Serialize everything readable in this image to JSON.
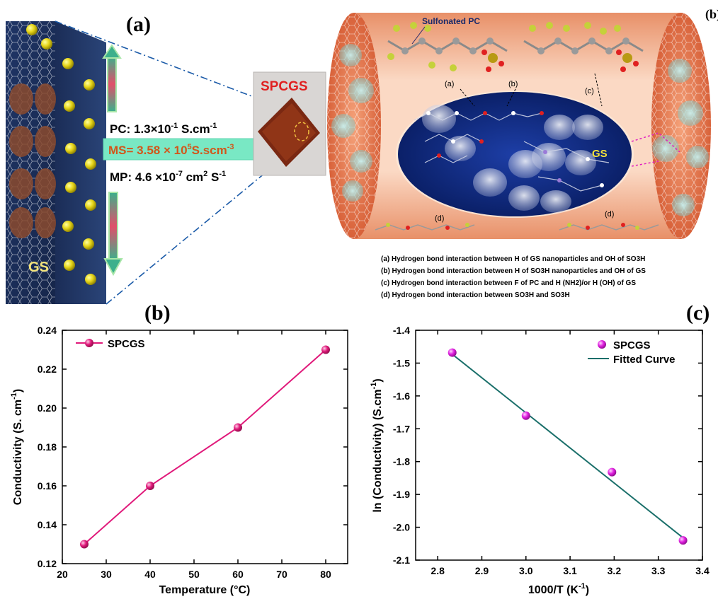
{
  "panel_a": {
    "letter": "(a)",
    "block_label": "GS",
    "film_label": "SPCGS",
    "pc_text": "PC: 1.3×10",
    "pc_exp": "-1",
    "pc_unit": " S.cm",
    "pc_unit_exp": "-1",
    "ms_text": "MS= 3.58 × 10",
    "ms_exp": "5",
    "ms_unit": "S.scm",
    "ms_unit_exp": "-3",
    "mp_text": "MP: 4.6 ×10",
    "mp_exp": "-7",
    "mp_unit": " cm",
    "mp_unit_exp": "2",
    "mp_tail": " S",
    "mp_tail_exp": "-1"
  },
  "panel_b_top": {
    "letter": "(b)",
    "sulfonated_label": "Sulfonated PC",
    "gs_label": "GS",
    "tag_a": "(a)",
    "tag_b": "(b)",
    "tag_c": "(c)",
    "tag_d": "(d)",
    "notes": [
      "(a) Hydrogen bond interaction between H of GS nanoparticles and OH of SO3H",
      "(b) Hydrogen bond interaction between H of SO3H nanoparticles and OH of GS",
      "(c) Hydrogen bond interaction between F of PC and H (NH2)/or H (OH) of GS",
      "(d) Hydrogen bond interaction between SO3H and SO3H"
    ]
  },
  "colors": {
    "pink_line": "#e0197a",
    "marker_magenta": "#e020e0",
    "teal_fit": "#1a6f6a",
    "ms_box": "#79e8c4",
    "ms_text": "#d2561a"
  },
  "chart_data": [
    {
      "type": "line",
      "panel": "(b)",
      "xlabel": "Temperature (°C)",
      "ylabel": "Conductivity (S. cm",
      "ylabel_sup": "-1",
      "ylabel_tail": ")",
      "xlim": [
        20,
        85
      ],
      "ylim": [
        0.12,
        0.24
      ],
      "xticks": [
        20,
        30,
        40,
        50,
        60,
        70,
        80
      ],
      "yticks": [
        0.12,
        0.14,
        0.16,
        0.18,
        0.2,
        0.22,
        0.24
      ],
      "ytick_labels": [
        "0.12",
        "0.14",
        "0.16",
        "0.18",
        "0.20",
        "0.22",
        "0.24"
      ],
      "legend": "top-left",
      "grid": false,
      "series": [
        {
          "name": "SPCGS",
          "x": [
            25,
            40,
            60,
            80
          ],
          "y": [
            0.13,
            0.16,
            0.19,
            0.23
          ]
        }
      ]
    },
    {
      "type": "scatter",
      "panel": "(c)",
      "xlabel": "1000/T (K",
      "xlabel_sup": "-1",
      "xlabel_tail": ")",
      "ylabel": "ln (Conductivity) (S.cm",
      "ylabel_sup": "-1",
      "ylabel_tail": ")",
      "xlim": [
        2.75,
        3.4
      ],
      "ylim": [
        -2.1,
        -1.4
      ],
      "xticks": [
        2.8,
        2.9,
        3.0,
        3.1,
        3.2,
        3.3,
        3.4
      ],
      "xtick_labels": [
        "2.8",
        "2.9",
        "3.0",
        "3.1",
        "3.2",
        "3.3",
        "3.4"
      ],
      "yticks": [
        -2.1,
        -2.0,
        -1.9,
        -1.8,
        -1.7,
        -1.6,
        -1.5,
        -1.4
      ],
      "ytick_labels": [
        "-2.1",
        "-2.0",
        "-1.9",
        "-1.8",
        "-1.7",
        "-1.6",
        "-1.5",
        "-1.4"
      ],
      "legend": "top-right",
      "grid": false,
      "series": [
        {
          "name": "SPCGS",
          "x": [
            2.833,
            3.0,
            3.195,
            3.356
          ],
          "y": [
            -1.468,
            -1.66,
            -1.832,
            -2.04
          ]
        },
        {
          "name": "Fitted Curve",
          "x": [
            2.833,
            3.356
          ],
          "y": [
            -1.473,
            -2.032
          ]
        }
      ]
    }
  ]
}
